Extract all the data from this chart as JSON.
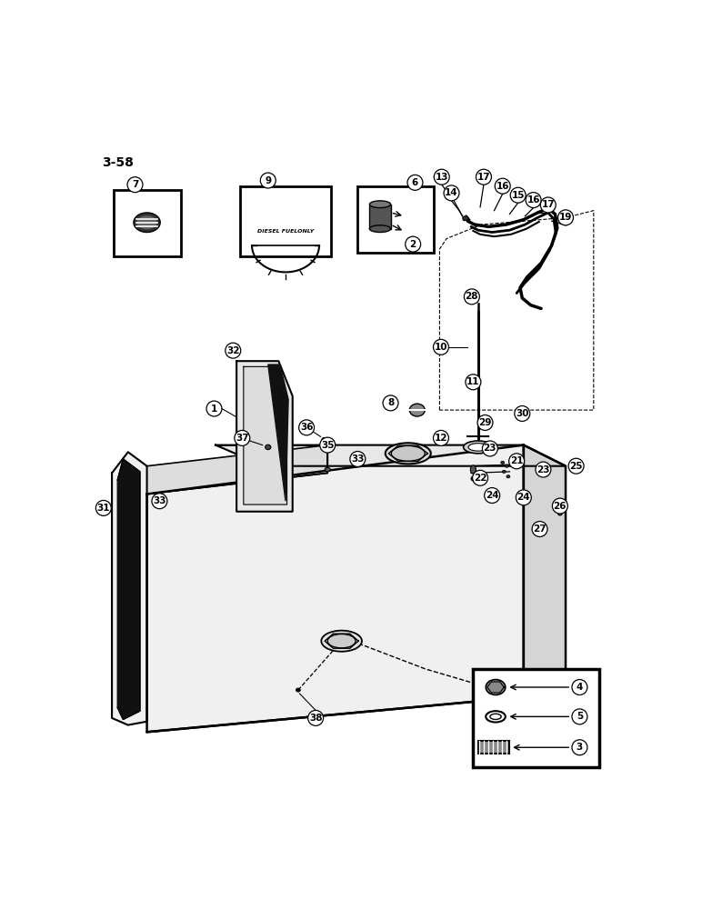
{
  "page_label": "3-58",
  "background_color": "#ffffff",
  "line_color": "#000000",
  "figsize": [
    7.72,
    10.0
  ],
  "dpi": 100
}
